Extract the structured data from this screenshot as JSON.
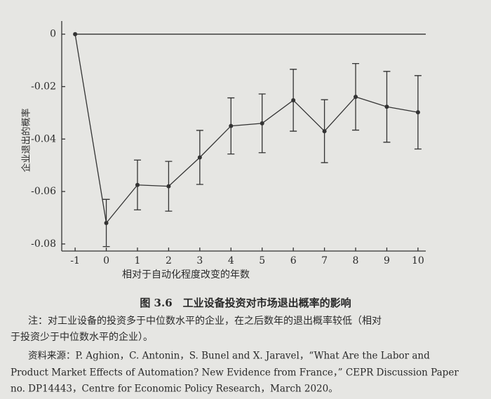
{
  "chart_data": {
    "type": "errorbar-line",
    "x": [
      -1,
      0,
      1,
      2,
      3,
      4,
      5,
      6,
      7,
      8,
      9,
      10
    ],
    "series": [
      {
        "color": "#333333",
        "values": [
          0,
          -0.072,
          -0.0575,
          -0.058,
          -0.047,
          -0.035,
          -0.034,
          -0.0252,
          -0.037,
          -0.0239,
          -0.0277,
          -0.0298
        ],
        "errors": [
          null,
          0.009,
          0.0095,
          0.0095,
          0.0103,
          0.0107,
          0.0112,
          0.0118,
          0.012,
          0.0127,
          0.0135,
          0.014
        ]
      }
    ],
    "reference_line": 0,
    "xlim": [
      -1.43,
      10.25
    ],
    "xticks": [
      -1,
      0,
      1,
      2,
      3,
      4,
      5,
      6,
      7,
      8,
      9,
      10
    ],
    "ylim": [
      -0.0827,
      0.005
    ],
    "yticks": [
      0,
      -0.02,
      -0.04,
      -0.06,
      -0.08
    ],
    "xlabel": "相对于自动化程度改变的年数",
    "ylabel": "企业退出的概率"
  },
  "caption": "图 3.6　工业设备投资对市场退出概率的影响",
  "note": [
    "注：对工业设备的投资多于中位数水平的企业，在之后数年的退出概率较低（相对",
    "于投资少于中位数水平的企业）。"
  ],
  "source": [
    "资料来源：P. Aghion，C. Antonin，S. Bunel and X. Jaravel，“What Are the Labor and",
    "Product Market Effects of Automation? New Evidence from France，” CEPR Discussion Paper",
    "no. DP14443，Centre for Economic Policy Research，March 2020。"
  ]
}
